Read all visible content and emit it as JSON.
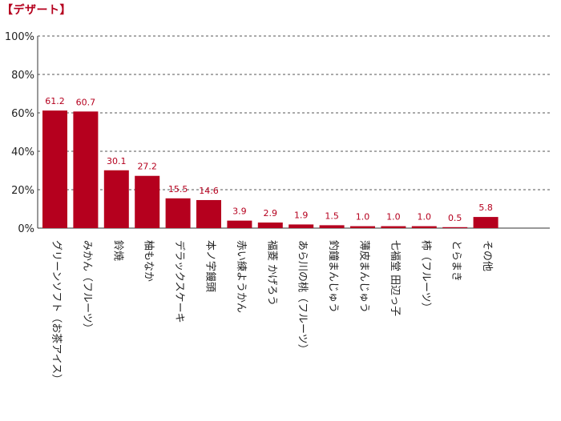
{
  "chart_data": {
    "type": "bar",
    "title": "【デザート】",
    "xlabel": "",
    "ylabel": "",
    "ylim": [
      0,
      100
    ],
    "yticks": [
      "0%",
      "20%",
      "40%",
      "60%",
      "80%",
      "100%"
    ],
    "grid": true,
    "bar_color": "#b5001e",
    "categories": [
      "グリーンソフト（お茶アイス）",
      "みかん（フルーツ）",
      "鈴焼",
      "柚もなか",
      "デラックスケーキ",
      "本ノ字饅頭",
      "赤い練ようかん",
      "福菱 かげろう",
      "あら川の桃（フルーツ）",
      "釣鐘まんじゅう",
      "薄皮まんじゅう",
      "七福堂 田辺っ子",
      "柿（フルーツ）",
      "とらまき",
      "その他"
    ],
    "values": [
      61.2,
      60.7,
      30.1,
      27.2,
      15.5,
      14.6,
      3.9,
      2.9,
      1.9,
      1.5,
      1.0,
      1.0,
      1.0,
      0.5,
      5.8
    ],
    "value_labels": [
      "61.2",
      "60.7",
      "30.1",
      "27.2",
      "15.5",
      "14.6",
      "3.9",
      "2.9",
      "1.9",
      "1.5",
      "1.0",
      "1.0",
      "1.0",
      "0.5",
      "5.8"
    ]
  }
}
